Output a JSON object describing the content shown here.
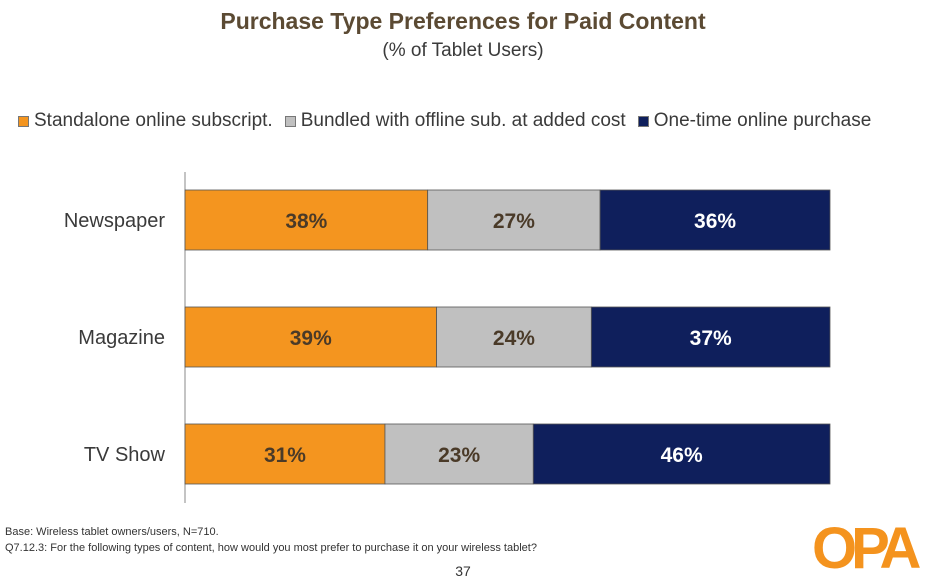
{
  "header": {
    "title": "Purchase Type Preferences for Paid Content",
    "subtitle": "(% of Tablet Users)"
  },
  "legend": [
    {
      "label": "Standalone online subscript.",
      "color": "#f4951f"
    },
    {
      "label": "Bundled with offline sub. at added cost",
      "color": "#c0c0c0"
    },
    {
      "label": "One-time online purchase",
      "color": "#0f1f5c"
    }
  ],
  "chart_data": {
    "type": "bar",
    "orientation": "horizontal",
    "stacked": true,
    "categories": [
      "Newspaper",
      "Magazine",
      "TV Show"
    ],
    "series": [
      {
        "name": "Standalone online subscript.",
        "values": [
          38,
          39,
          31
        ],
        "labels": [
          "38%",
          "39%",
          "31%"
        ],
        "color": "#f4951f",
        "label_color": "#4a3a28"
      },
      {
        "name": "Bundled with offline sub. at added cost",
        "values": [
          27,
          24,
          23
        ],
        "labels": [
          "27%",
          "24%",
          "23%"
        ],
        "color": "#c0c0c0",
        "label_color": "#4a3a28"
      },
      {
        "name": "One-time online purchase",
        "values": [
          36,
          37,
          46
        ],
        "labels": [
          "36%",
          "37%",
          "46%"
        ],
        "color": "#0f1f5c",
        "label_color": "#ffffff"
      }
    ],
    "title": "Purchase Type Preferences for Paid Content",
    "subtitle": "(% of Tablet Users)",
    "legend_position": "top",
    "grid": false
  },
  "footer": {
    "base": "Base:  Wireless tablet owners/users, N=710.",
    "question": "Q7.12.3:  For the following types of content, how would you most prefer to purchase it on your wireless tablet?",
    "page_number": "37"
  },
  "logo": {
    "text": "OPA",
    "color": "#f4931e"
  }
}
